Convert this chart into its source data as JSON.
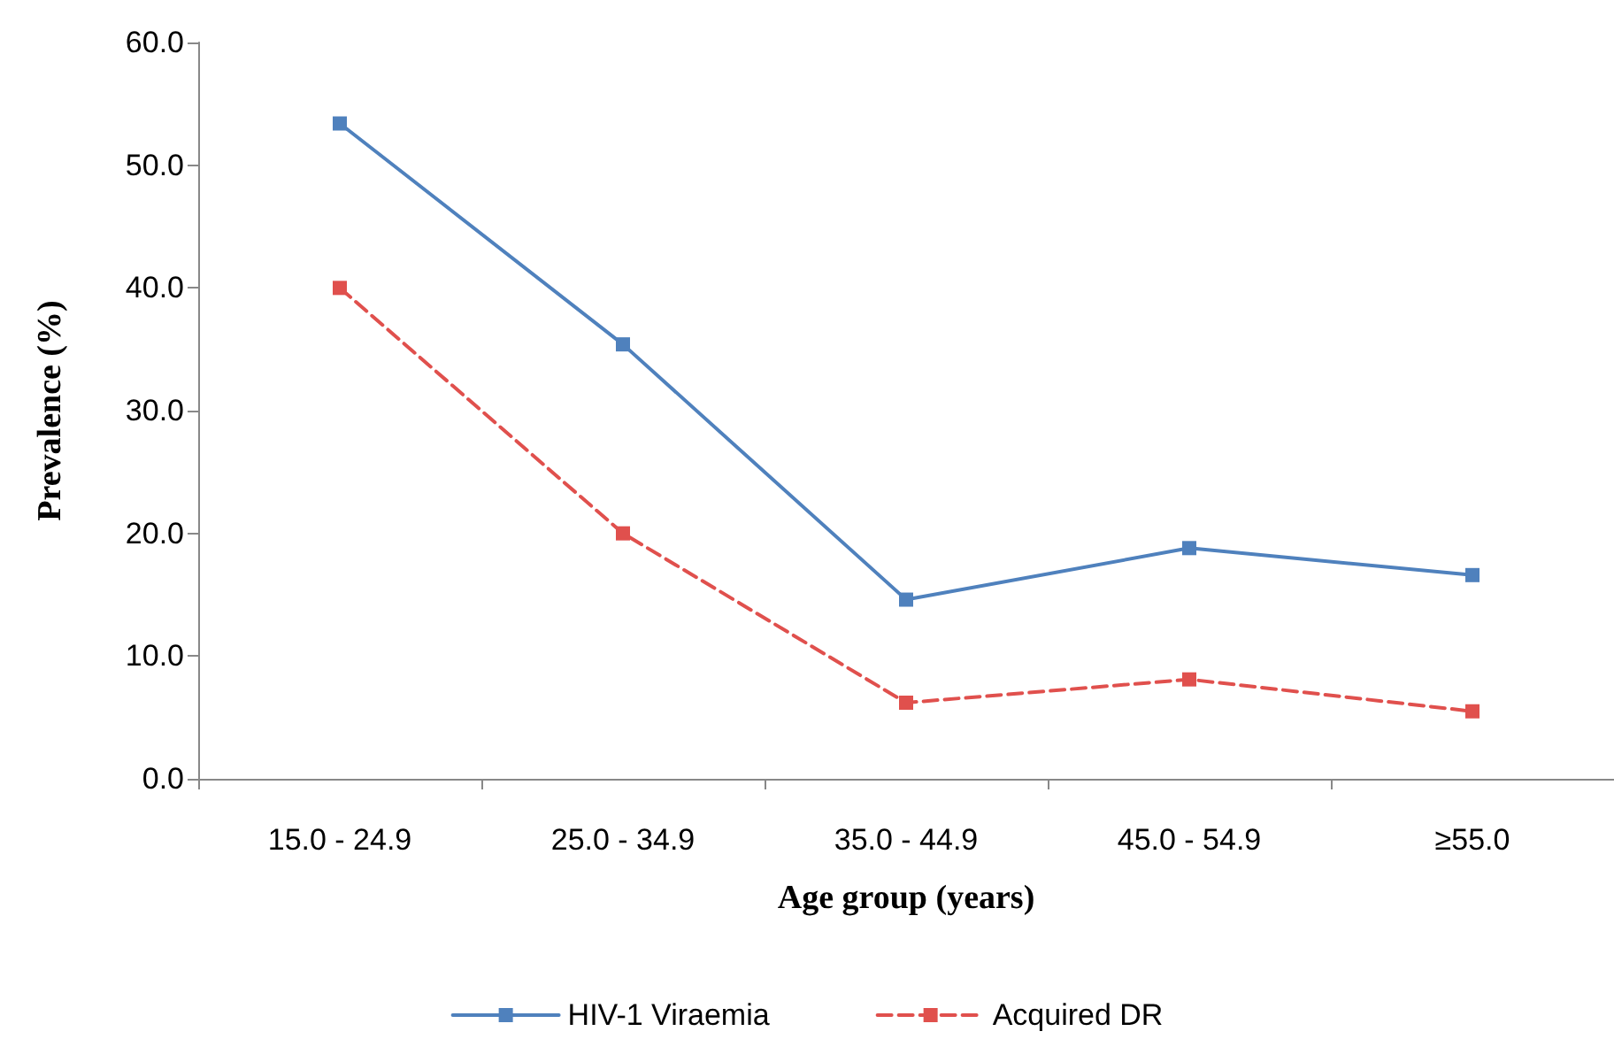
{
  "chart_data": {
    "type": "line",
    "xlabel": "Age group (years)",
    "ylabel": "Prevalence (%)",
    "categories": [
      "15.0 - 24.9",
      "25.0 - 34.9",
      "35.0 - 44.9",
      "45.0 - 54.9",
      "≥55.0"
    ],
    "series": [
      {
        "name": "HIV-1 Viraemia",
        "color": "#4f81bd",
        "values": [
          53.4,
          35.4,
          14.6,
          18.8,
          16.6
        ],
        "line_style": "solid"
      },
      {
        "name": "Acquired DR",
        "color": "#e0504d",
        "values": [
          40.0,
          20.0,
          6.2,
          8.1,
          5.5
        ],
        "line_style": "dashed"
      }
    ],
    "ylim": [
      0,
      60
    ],
    "yticks": [
      {
        "value": 0,
        "label": "0.0"
      },
      {
        "value": 10,
        "label": "10.0"
      },
      {
        "value": 20,
        "label": "20.0"
      },
      {
        "value": 30,
        "label": "30.0"
      },
      {
        "value": 40,
        "label": "40.0"
      },
      {
        "value": 50,
        "label": "50.0"
      },
      {
        "value": 60,
        "label": "60.0"
      }
    ],
    "marker": "square",
    "grid": false,
    "legend": "bottom"
  }
}
